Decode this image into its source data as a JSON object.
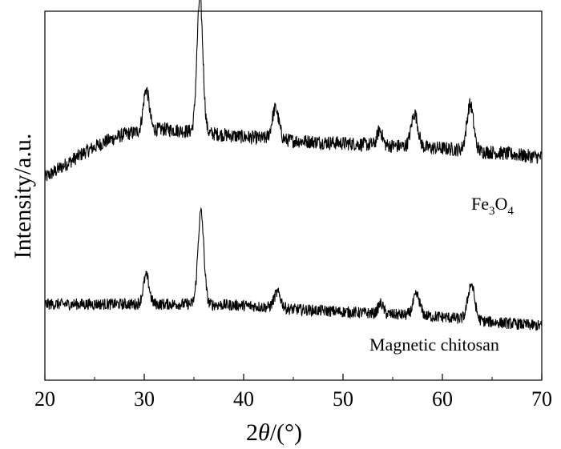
{
  "chart_data": {
    "type": "line",
    "title": "",
    "xlabel": "2θ/(°)",
    "xlabel_parts": {
      "prefix": "2",
      "symbol": "θ",
      "suffix": "/(°)"
    },
    "ylabel": "Intensity/a.u.",
    "xlim": [
      20,
      70
    ],
    "x_ticks": [
      20,
      30,
      40,
      50,
      60,
      70
    ],
    "x_minor_ticks": [
      25,
      35,
      45,
      55,
      65
    ],
    "y_ticks_shown": false,
    "grid": false,
    "legend": "none",
    "line_color": "#000000",
    "series": [
      {
        "name": "Fe3O4",
        "label_parts": {
          "a": "Fe",
          "sub1": "3",
          "b": "O",
          "sub2": "4"
        },
        "stack_position": "top",
        "baseline": [
          [
            20,
            0.08
          ],
          [
            22,
            0.18
          ],
          [
            24,
            0.28
          ],
          [
            26,
            0.36
          ],
          [
            28,
            0.42
          ],
          [
            30,
            0.45
          ],
          [
            32,
            0.46
          ],
          [
            35,
            0.44
          ],
          [
            40,
            0.4
          ],
          [
            45,
            0.37
          ],
          [
            50,
            0.35
          ],
          [
            55,
            0.33
          ],
          [
            60,
            0.31
          ],
          [
            65,
            0.28
          ],
          [
            70,
            0.24
          ]
        ],
        "peaks": [
          {
            "two_theta": 30.2,
            "height": 0.32,
            "fwhm": 0.7
          },
          {
            "two_theta": 35.6,
            "height": 1.05,
            "fwhm": 0.7
          },
          {
            "two_theta": 43.2,
            "height": 0.24,
            "fwhm": 0.8
          },
          {
            "two_theta": 53.7,
            "height": 0.12,
            "fwhm": 0.6
          },
          {
            "two_theta": 57.2,
            "height": 0.26,
            "fwhm": 0.8
          },
          {
            "two_theta": 62.8,
            "height": 0.36,
            "fwhm": 0.8
          }
        ],
        "noise": 0.055
      },
      {
        "name": "Magnetic chitosan",
        "label_parts": {
          "a": "Magnetic chitosan"
        },
        "stack_position": "bottom",
        "baseline": [
          [
            20,
            0.0
          ],
          [
            25,
            0.0
          ],
          [
            30,
            0.0
          ],
          [
            35,
            0.0
          ],
          [
            40,
            -0.01
          ],
          [
            45,
            -0.04
          ],
          [
            50,
            -0.06
          ],
          [
            55,
            -0.08
          ],
          [
            60,
            -0.1
          ],
          [
            65,
            -0.14
          ],
          [
            70,
            -0.17
          ]
        ],
        "peaks": [
          {
            "two_theta": 30.2,
            "height": 0.22,
            "fwhm": 0.7
          },
          {
            "two_theta": 35.7,
            "height": 0.72,
            "fwhm": 0.7
          },
          {
            "two_theta": 43.4,
            "height": 0.12,
            "fwhm": 0.8
          },
          {
            "two_theta": 53.8,
            "height": 0.08,
            "fwhm": 0.6
          },
          {
            "two_theta": 57.4,
            "height": 0.16,
            "fwhm": 0.8
          },
          {
            "two_theta": 62.9,
            "height": 0.28,
            "fwhm": 0.8
          }
        ],
        "noise": 0.045
      }
    ]
  }
}
